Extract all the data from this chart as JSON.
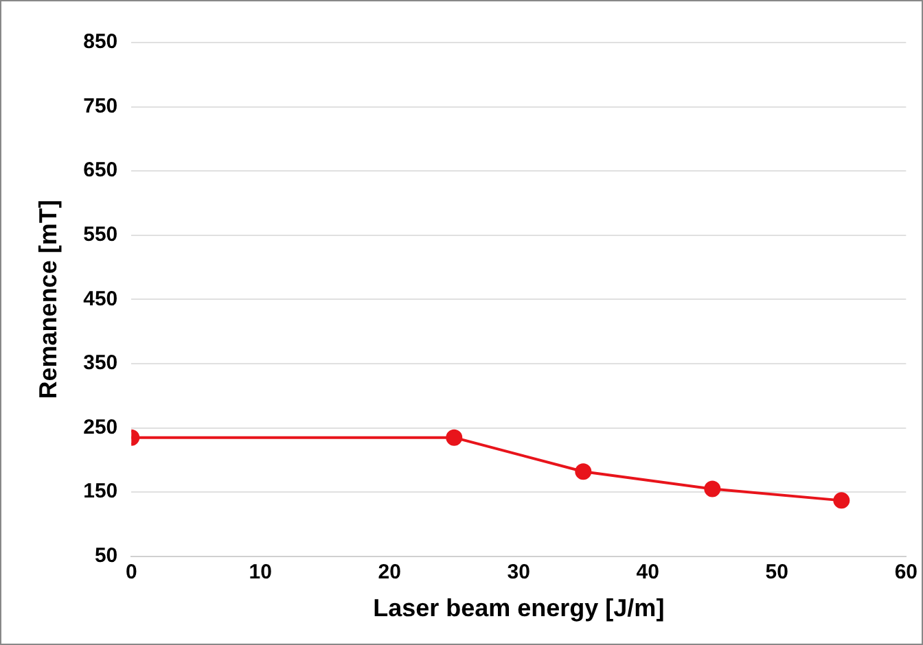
{
  "chart_data": {
    "type": "line",
    "xlabel": "Laser beam energy [J/m]",
    "ylabel": "Remanence [mT]",
    "x": [
      0,
      25,
      35,
      45,
      55
    ],
    "series": [
      {
        "color": "#e8141b",
        "values": [
          235,
          235,
          182,
          155,
          137
        ]
      }
    ],
    "xlim": [
      0,
      60
    ],
    "xticks": [
      0,
      10,
      20,
      30,
      40,
      50,
      60
    ],
    "ylim": [
      50,
      850
    ],
    "yticks": [
      50,
      150,
      250,
      350,
      450,
      550,
      650,
      750,
      850
    ],
    "grid": "y",
    "marker": "circle",
    "legend": false
  }
}
